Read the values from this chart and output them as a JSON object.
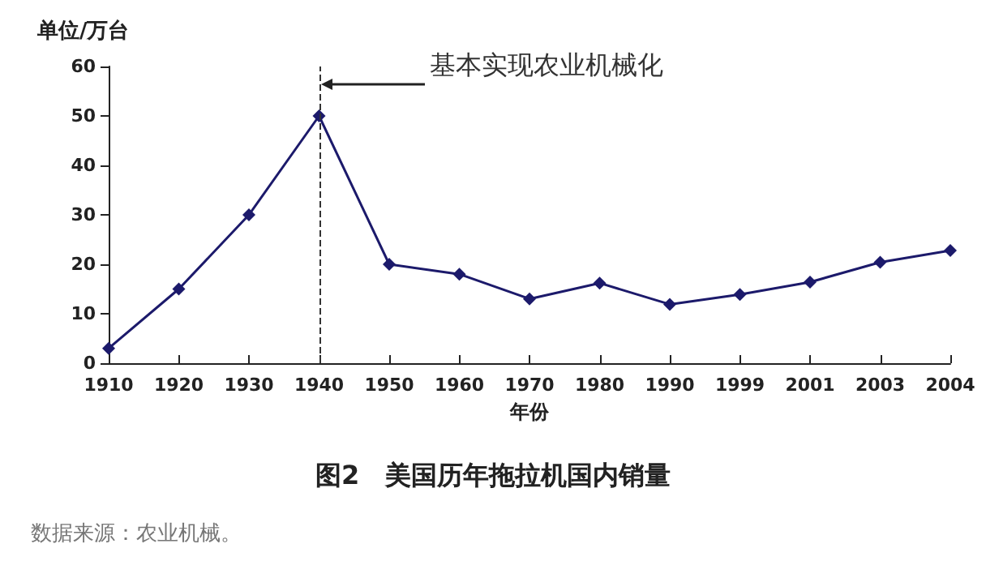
{
  "chart_data": {
    "type": "line",
    "title": "图2　美国历年拖拉机国内销量",
    "ylabel": "单位/万台",
    "xlabel": "年份",
    "annotations": [
      "数据来源：农业机械。"
    ],
    "categories": [
      "1910",
      "1920",
      "1930",
      "1940",
      "1950",
      "1960",
      "1970",
      "1980",
      "1990",
      "1999",
      "2001",
      "2003",
      "2004"
    ],
    "series": [
      {
        "color": "#1c1a6b",
        "values": [
          3,
          15,
          30,
          50,
          20,
          18,
          13,
          16.2,
          11.9,
          13.9,
          16.4,
          20.4,
          22.8
        ]
      }
    ],
    "ylim": [
      0,
      60
    ],
    "yticks": [
      0,
      10,
      20,
      30,
      40,
      50,
      60
    ],
    "ref_lines": [
      {
        "axis": "x",
        "value": "1940",
        "label": "基本实现农业机械化",
        "color": "#333333",
        "line_style": "dashed"
      }
    ],
    "marker": "diamond",
    "line_style": "solid",
    "grid": false
  }
}
